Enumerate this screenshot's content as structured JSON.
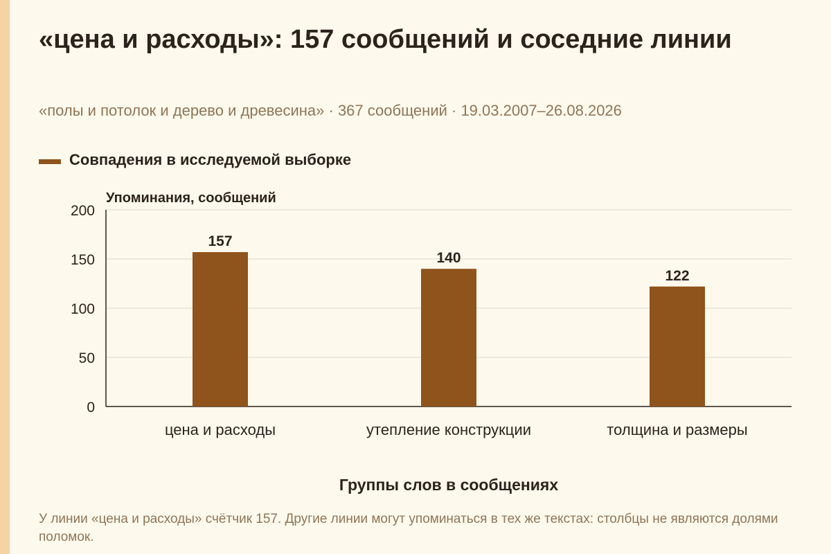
{
  "title": "«цена и расходы»: 157 сообщений и соседние линии",
  "subtitle": "«полы и потолок и дерево и древесина» · 367 сообщений · 19.03.2007–26.08.2026",
  "legend": {
    "label": "Совпадения в исследуемой выборке",
    "color": "#8f531c"
  },
  "chart_data": {
    "type": "bar",
    "categories": [
      "цена и расходы",
      "утепление конструкции",
      "толщина и размеры"
    ],
    "series": [
      {
        "name": "Совпадения в исследуемой выборке",
        "values": [
          157,
          140,
          122
        ],
        "color": "#8f531c"
      }
    ],
    "ylabel": "Упоминания, сообщений",
    "xlabel": "Группы слов в сообщениях",
    "ylim": [
      0,
      200
    ],
    "yticks": [
      0,
      50,
      100,
      150,
      200
    ],
    "grid": true,
    "legend_position": "top-left",
    "data_labels": true
  },
  "footnote": "У линии «цена и расходы» счётчик 157. Другие линии могут упоминаться в тех же текстах: столбцы не являются долями поломок."
}
